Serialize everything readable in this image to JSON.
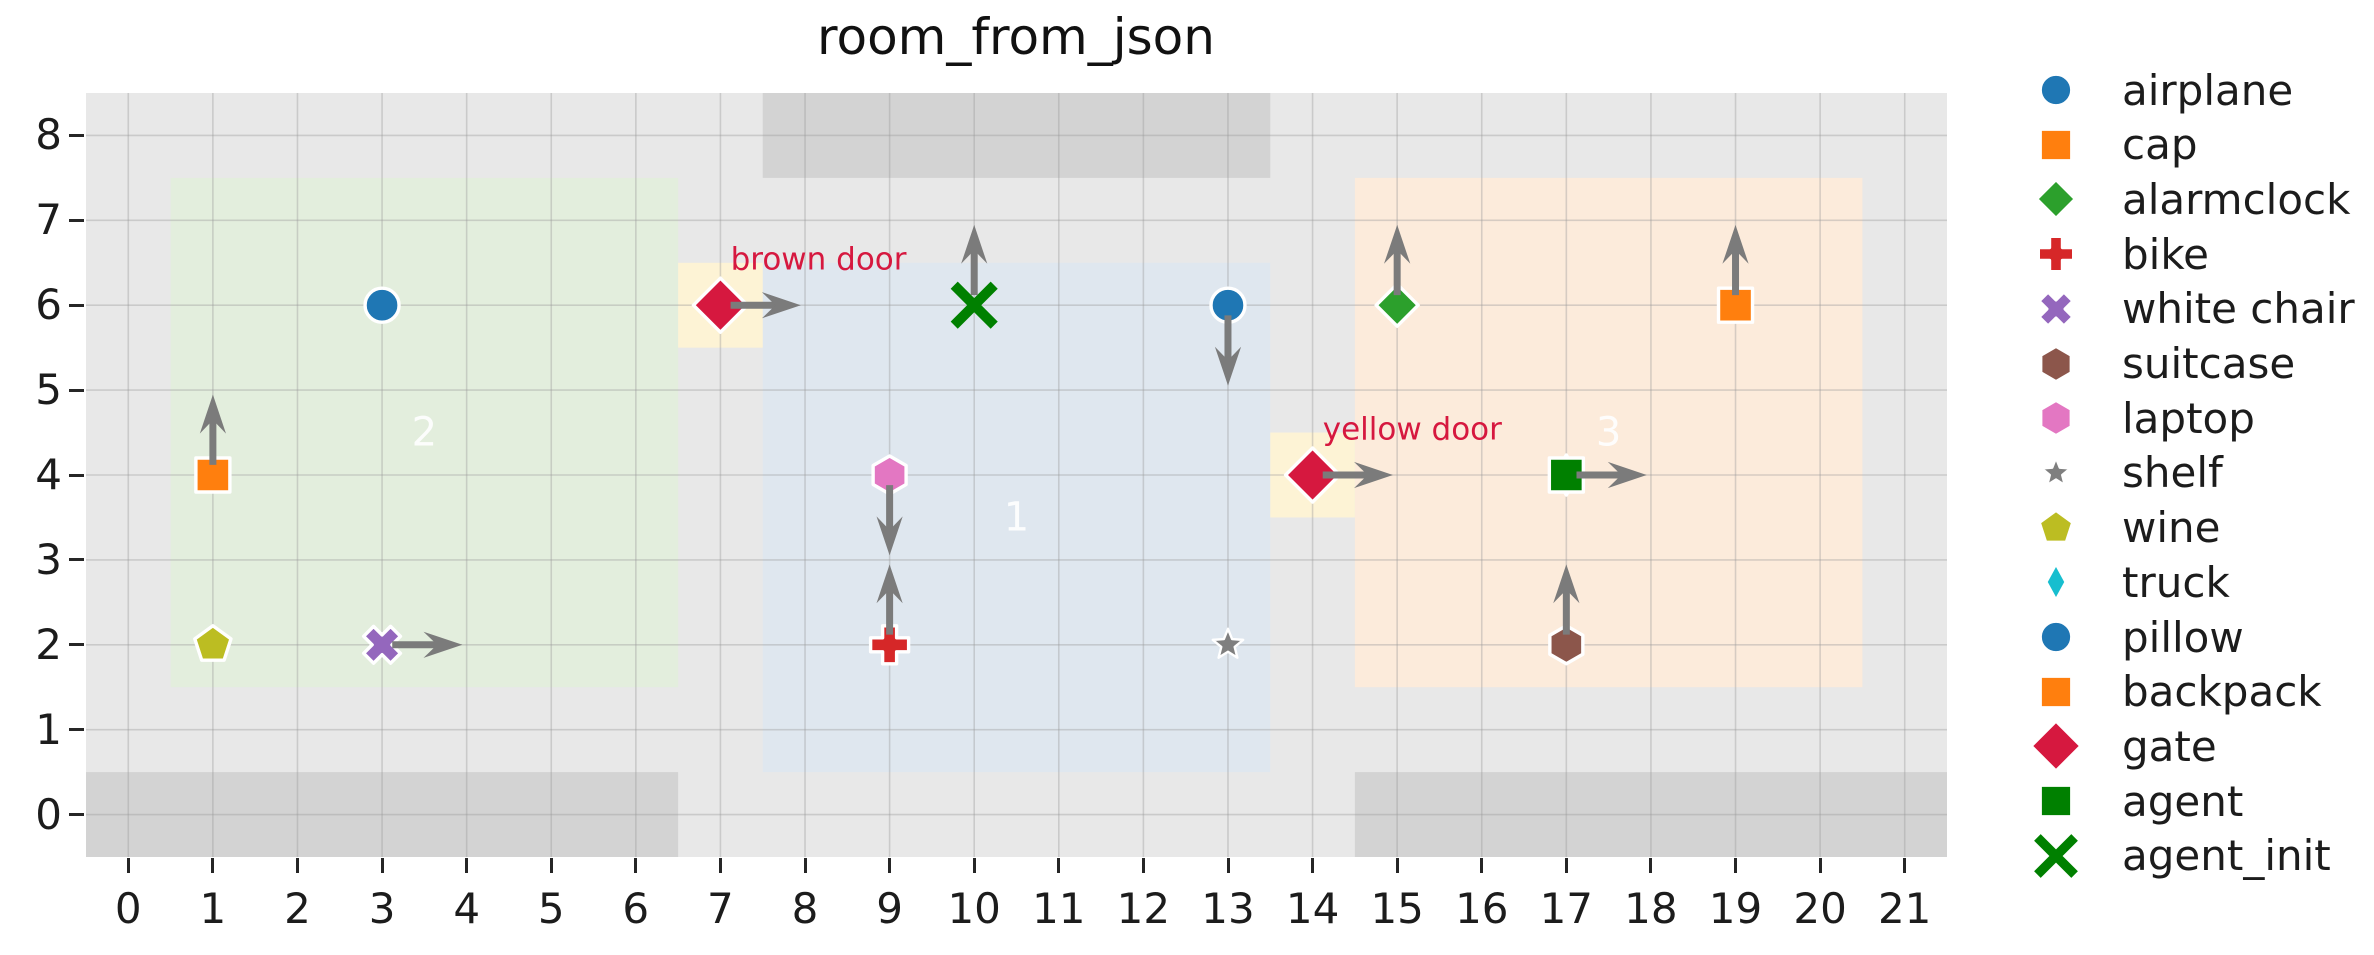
{
  "figure": {
    "title": "room_from_json"
  },
  "colors": {
    "plot_bg": "#e8e8e8",
    "grid": "#9a9a9a",
    "wall": "#d3d3d3",
    "room_blue": "#dfe7ef",
    "room_green": "#e3eedd",
    "room_peach": "#fcebdb",
    "door_cell": "#fdf3d5",
    "arrow": "#7b7b7b",
    "door_label": "#d6183f",
    "region_label": "#ffffff",
    "tick_text": "#1c1c1c"
  },
  "chart_data": {
    "type": "scatter",
    "title": "room_from_json",
    "xlabel": "",
    "ylabel": "",
    "xlim": [
      -0.5,
      21.5
    ],
    "ylim": [
      -0.5,
      8.5
    ],
    "x_ticks": [
      0,
      1,
      2,
      3,
      4,
      5,
      6,
      7,
      8,
      9,
      10,
      11,
      12,
      13,
      14,
      15,
      16,
      17,
      18,
      19,
      20,
      21
    ],
    "y_ticks": [
      0,
      1,
      2,
      3,
      4,
      5,
      6,
      7,
      8
    ],
    "grid": true,
    "legend_position": "right-outside",
    "rooms": [
      {
        "id": "2",
        "x": [
          0.5,
          6.5
        ],
        "y": [
          1.5,
          7.5
        ],
        "color_key": "room_green",
        "label": "2",
        "label_xy": [
          3.5,
          4.5
        ]
      },
      {
        "id": "1",
        "x": [
          7.5,
          13.5
        ],
        "y": [
          0.5,
          6.5
        ],
        "color_key": "room_blue",
        "label": "1",
        "label_xy": [
          10.5,
          3.5
        ]
      },
      {
        "id": "3",
        "x": [
          14.5,
          20.5
        ],
        "y": [
          1.5,
          7.5
        ],
        "color_key": "room_peach",
        "label": "3",
        "label_xy": [
          17.5,
          4.5
        ]
      }
    ],
    "walls": [
      {
        "x": [
          7.5,
          13.5
        ],
        "y": [
          7.5,
          8.5
        ]
      },
      {
        "x": [
          -0.5,
          6.5
        ],
        "y": [
          -0.5,
          0.5
        ]
      },
      {
        "x": [
          14.5,
          21.5
        ],
        "y": [
          -0.5,
          0.5
        ]
      }
    ],
    "doors": [
      {
        "label": "brown door",
        "cell_x": [
          6.5,
          7.5
        ],
        "cell_y": [
          5.5,
          6.5
        ],
        "label_xy": [
          7.12,
          6.42
        ]
      },
      {
        "label": "yellow door",
        "cell_x": [
          13.5,
          14.5
        ],
        "cell_y": [
          3.5,
          4.5
        ],
        "label_xy": [
          14.12,
          4.42
        ]
      }
    ],
    "objects": [
      {
        "name": "airplane",
        "marker": "circle",
        "color": "#1f77b4",
        "xy": [
          3,
          6
        ],
        "arrow": null
      },
      {
        "name": "cap",
        "marker": "square",
        "color": "#ff7f0e",
        "xy": [
          1,
          4
        ],
        "arrow": "up"
      },
      {
        "name": "alarmclock",
        "marker": "diamond",
        "color": "#2ca02c",
        "xy": [
          15,
          6
        ],
        "arrow": "up"
      },
      {
        "name": "bike",
        "marker": "plus",
        "color": "#d62728",
        "xy": [
          9,
          2
        ],
        "arrow": "up"
      },
      {
        "name": "white chair",
        "marker": "x-filled",
        "color": "#9467bd",
        "xy": [
          3,
          2
        ],
        "arrow": "right"
      },
      {
        "name": "suitcase",
        "marker": "hexagon",
        "color": "#8c564b",
        "xy": [
          17,
          2
        ],
        "arrow": "up"
      },
      {
        "name": "laptop",
        "marker": "hexagon",
        "color": "#e377c2",
        "xy": [
          9,
          4
        ],
        "arrow": "down"
      },
      {
        "name": "shelf",
        "marker": "star",
        "color": "#7f7f7f",
        "xy": [
          13,
          2
        ],
        "arrow": null
      },
      {
        "name": "wine",
        "marker": "pentagon",
        "color": "#bcbd22",
        "xy": [
          1,
          2
        ],
        "arrow": null
      },
      {
        "name": "truck",
        "marker": "thin-diamond",
        "color": "#17becf",
        "xy": [
          17,
          4
        ],
        "arrow": null
      },
      {
        "name": "pillow",
        "marker": "circle",
        "color": "#1f77b4",
        "xy": [
          13,
          6
        ],
        "arrow": "down"
      },
      {
        "name": "backpack",
        "marker": "square",
        "color": "#ff7f0e",
        "xy": [
          19,
          6
        ],
        "arrow": "up"
      },
      {
        "name": "gate",
        "marker": "big-diamond",
        "color": "#d6183f",
        "xy": [
          7,
          6
        ],
        "arrow": "right"
      },
      {
        "name": "gate",
        "marker": "big-diamond",
        "color": "#d6183f",
        "xy": [
          14,
          4
        ],
        "arrow": "right"
      },
      {
        "name": "agent",
        "marker": "square",
        "color": "#008000",
        "xy": [
          17,
          4
        ],
        "arrow": "right"
      },
      {
        "name": "agent_init",
        "marker": "x-line",
        "color": "#008000",
        "xy": [
          10,
          6
        ],
        "arrow": "up"
      }
    ],
    "legend": [
      {
        "label": "airplane",
        "marker": "circle",
        "color": "#1f77b4"
      },
      {
        "label": "cap",
        "marker": "square",
        "color": "#ff7f0e"
      },
      {
        "label": "alarmclock",
        "marker": "diamond",
        "color": "#2ca02c"
      },
      {
        "label": "bike",
        "marker": "plus",
        "color": "#d62728"
      },
      {
        "label": "white chair",
        "marker": "x-filled",
        "color": "#9467bd"
      },
      {
        "label": "suitcase",
        "marker": "hexagon",
        "color": "#8c564b"
      },
      {
        "label": "laptop",
        "marker": "hexagon",
        "color": "#e377c2"
      },
      {
        "label": "shelf",
        "marker": "star",
        "color": "#7f7f7f"
      },
      {
        "label": "wine",
        "marker": "pentagon",
        "color": "#bcbd22"
      },
      {
        "label": "truck",
        "marker": "thin-diamond",
        "color": "#17becf"
      },
      {
        "label": "pillow",
        "marker": "circle",
        "color": "#1f77b4"
      },
      {
        "label": "backpack",
        "marker": "square",
        "color": "#ff7f0e"
      },
      {
        "label": "gate",
        "marker": "big-diamond",
        "color": "#d6183f"
      },
      {
        "label": "agent",
        "marker": "square",
        "color": "#008000"
      },
      {
        "label": "agent_init",
        "marker": "x-line",
        "color": "#008000"
      }
    ]
  }
}
